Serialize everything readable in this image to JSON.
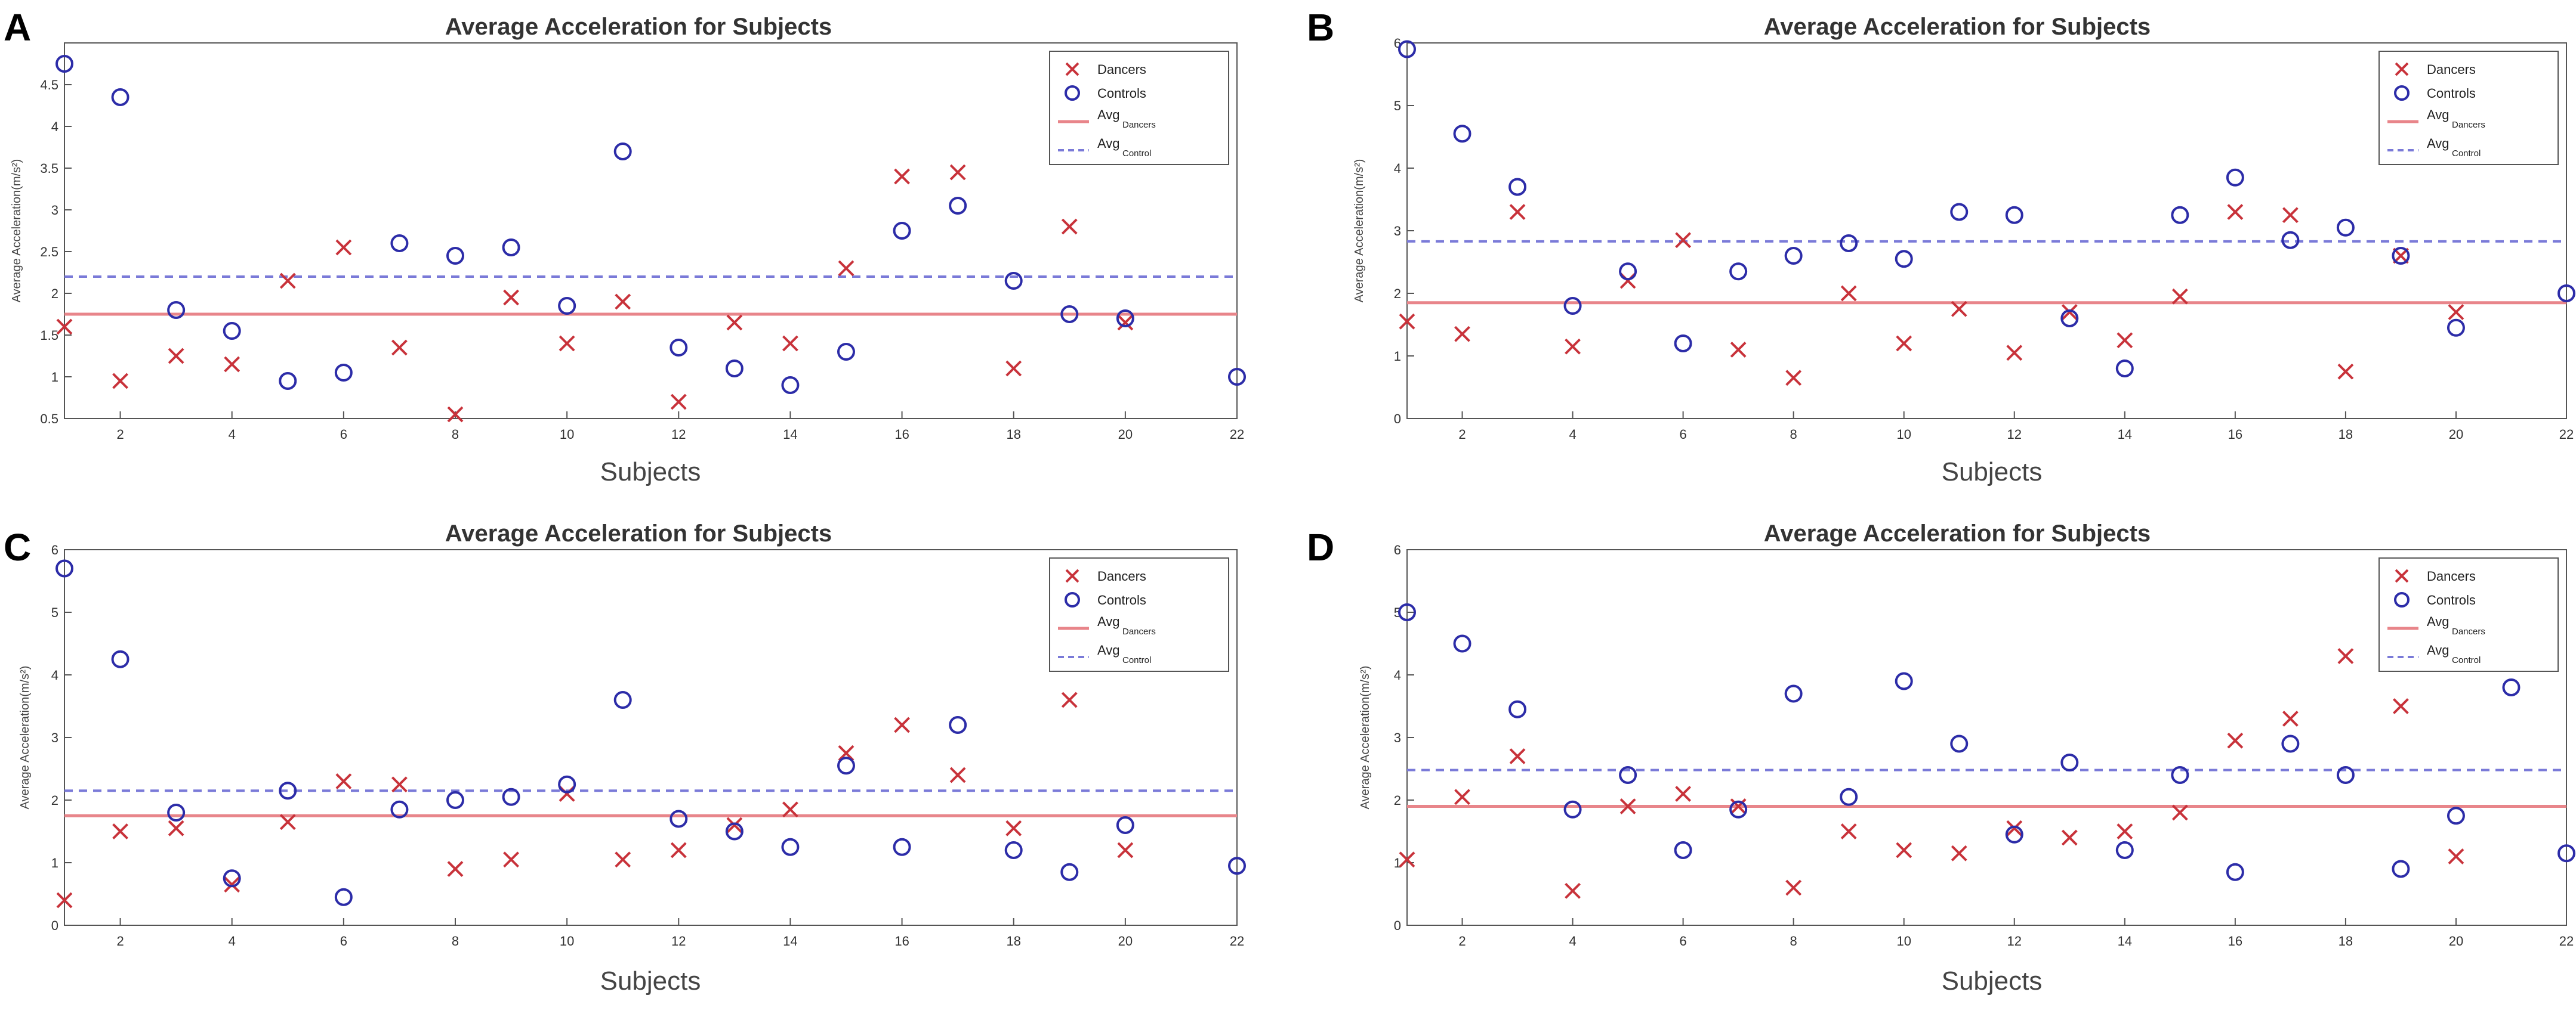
{
  "colors": {
    "dancers": "#c8323a",
    "controls": "#2c2ca8",
    "avg_dancers": "#e8858a",
    "avg_controls": "#7a7ad8",
    "axis": "#555555"
  },
  "chart_data": [
    {
      "type": "scatter",
      "panel_label": "A",
      "title": "Average Acceleration for Subjects",
      "xlabel": "Subjects",
      "ylabel": "Average Acceleration(m/s²)",
      "xlim": [
        1,
        22
      ],
      "ylim": [
        0.5,
        5
      ],
      "xticks": [
        "2",
        "4",
        "6",
        "8",
        "10",
        "12",
        "14",
        "16",
        "18",
        "20",
        "22"
      ],
      "yticks": [
        "0.5",
        "1",
        "1.5",
        "2",
        "2.5",
        "3",
        "3.5",
        "4",
        "4.5"
      ],
      "legend": {
        "dancers": "Dancers",
        "controls": "Controls",
        "avg_dancers": "Avg",
        "avg_dancers_sub": "Dancers",
        "avg_controls": "Avg",
        "avg_controls_sub": "Control",
        "position": "top-right"
      },
      "series": [
        {
          "name": "Dancers",
          "marker": "x",
          "x": [
            1,
            2,
            3,
            4,
            5,
            6,
            7,
            8,
            9,
            10,
            11,
            12,
            13,
            14,
            15,
            16,
            17,
            18,
            19,
            20
          ],
          "y": [
            1.6,
            0.95,
            1.25,
            1.15,
            2.15,
            2.55,
            1.35,
            0.55,
            1.95,
            1.4,
            1.9,
            0.7,
            1.65,
            1.4,
            2.3,
            3.4,
            3.45,
            1.1,
            2.8,
            1.65
          ]
        },
        {
          "name": "Controls",
          "marker": "o",
          "x": [
            1,
            2,
            3,
            4,
            5,
            6,
            7,
            8,
            9,
            10,
            11,
            12,
            13,
            14,
            15,
            16,
            17,
            18,
            19,
            20,
            22
          ],
          "y": [
            4.75,
            4.35,
            1.8,
            1.55,
            0.95,
            1.05,
            2.6,
            2.45,
            2.55,
            1.85,
            3.7,
            1.35,
            1.1,
            0.9,
            1.3,
            2.75,
            3.05,
            2.15,
            1.75,
            1.7,
            1.0
          ]
        }
      ],
      "avg_dancers": 1.75,
      "avg_controls": 2.2
    },
    {
      "type": "scatter",
      "panel_label": "B",
      "title": "Average Acceleration for Subjects",
      "xlabel": "Subjects",
      "ylabel": "Average Acceleration(m/s²)",
      "xlim": [
        1,
        22
      ],
      "ylim": [
        0,
        6
      ],
      "xticks": [
        "2",
        "4",
        "6",
        "8",
        "10",
        "12",
        "14",
        "16",
        "18",
        "20",
        "22"
      ],
      "yticks": [
        "0",
        "1",
        "2",
        "3",
        "4",
        "5",
        "6"
      ],
      "legend": {
        "dancers": "Dancers",
        "controls": "Controls",
        "avg_dancers": "Avg",
        "avg_dancers_sub": "Dancers",
        "avg_controls": "Avg",
        "avg_controls_sub": "Control",
        "position": "top-right"
      },
      "series": [
        {
          "name": "Dancers",
          "marker": "x",
          "x": [
            1,
            2,
            3,
            4,
            5,
            6,
            7,
            8,
            9,
            10,
            11,
            12,
            13,
            14,
            15,
            16,
            17,
            18,
            19,
            20
          ],
          "y": [
            1.55,
            1.35,
            3.3,
            1.15,
            2.2,
            2.85,
            1.1,
            0.65,
            2.0,
            1.2,
            1.75,
            1.05,
            1.7,
            1.25,
            1.95,
            3.3,
            3.25,
            0.75,
            2.6,
            1.7
          ]
        },
        {
          "name": "Controls",
          "marker": "o",
          "x": [
            1,
            2,
            3,
            4,
            5,
            6,
            7,
            8,
            9,
            10,
            11,
            12,
            13,
            14,
            15,
            16,
            17,
            18,
            19,
            20,
            22
          ],
          "y": [
            5.9,
            4.55,
            3.7,
            1.8,
            2.35,
            1.2,
            2.35,
            2.6,
            2.8,
            2.55,
            3.3,
            3.25,
            1.6,
            0.8,
            3.25,
            3.85,
            2.85,
            3.05,
            2.6,
            1.45,
            2.0
          ]
        }
      ],
      "avg_dancers": 1.85,
      "avg_controls": 2.83
    },
    {
      "type": "scatter",
      "panel_label": "C",
      "title": "Average Acceleration for Subjects",
      "xlabel": "Subjects",
      "ylabel": "Average Acceleration(m/s²)",
      "xlim": [
        1,
        22
      ],
      "ylim": [
        0,
        6
      ],
      "xticks": [
        "2",
        "4",
        "6",
        "8",
        "10",
        "12",
        "14",
        "16",
        "18",
        "20",
        "22"
      ],
      "yticks": [
        "0",
        "1",
        "2",
        "3",
        "4",
        "5",
        "6"
      ],
      "legend": {
        "dancers": "Dancers",
        "controls": "Controls",
        "avg_dancers": "Avg",
        "avg_dancers_sub": "Dancers",
        "avg_controls": "Avg",
        "avg_controls_sub": "Control",
        "position": "top-right"
      },
      "series": [
        {
          "name": "Dancers",
          "marker": "x",
          "x": [
            1,
            2,
            3,
            4,
            5,
            6,
            7,
            8,
            9,
            10,
            11,
            12,
            13,
            14,
            15,
            16,
            17,
            18,
            19,
            20
          ],
          "y": [
            0.4,
            1.5,
            1.55,
            0.65,
            1.65,
            2.3,
            2.25,
            0.9,
            1.05,
            2.1,
            1.05,
            1.2,
            1.6,
            1.85,
            2.75,
            3.2,
            2.4,
            1.55,
            3.6,
            1.2
          ]
        },
        {
          "name": "Controls",
          "marker": "o",
          "x": [
            1,
            2,
            3,
            4,
            5,
            6,
            7,
            8,
            9,
            10,
            11,
            12,
            13,
            14,
            15,
            16,
            17,
            18,
            19,
            20,
            22
          ],
          "y": [
            5.7,
            4.25,
            1.8,
            0.75,
            2.15,
            0.45,
            1.85,
            2.0,
            2.05,
            2.25,
            3.6,
            1.7,
            1.5,
            1.25,
            2.55,
            1.25,
            3.2,
            1.2,
            0.85,
            1.6,
            0.95
          ]
        }
      ],
      "avg_dancers": 1.75,
      "avg_controls": 2.15
    },
    {
      "type": "scatter",
      "panel_label": "D",
      "title": "Average Acceleration for Subjects",
      "xlabel": "Subjects",
      "ylabel": "Average Acceleration(m/s²)",
      "xlim": [
        1,
        22
      ],
      "ylim": [
        0,
        6
      ],
      "xticks": [
        "2",
        "4",
        "6",
        "8",
        "10",
        "12",
        "14",
        "16",
        "18",
        "20",
        "22"
      ],
      "yticks": [
        "0",
        "1",
        "2",
        "3",
        "4",
        "5",
        "6"
      ],
      "legend": {
        "dancers": "Dancers",
        "controls": "Controls",
        "avg_dancers": "Avg",
        "avg_dancers_sub": "Dancers",
        "avg_controls": "Avg",
        "avg_controls_sub": "Control",
        "position": "top-right"
      },
      "series": [
        {
          "name": "Dancers",
          "marker": "x",
          "x": [
            1,
            2,
            3,
            4,
            5,
            6,
            7,
            8,
            9,
            10,
            11,
            12,
            13,
            14,
            15,
            16,
            17,
            18,
            19,
            20
          ],
          "y": [
            1.05,
            2.05,
            2.7,
            0.55,
            1.9,
            2.1,
            1.9,
            0.6,
            1.5,
            1.2,
            1.15,
            1.55,
            1.4,
            1.5,
            1.8,
            2.95,
            3.3,
            4.3,
            3.5,
            1.1
          ]
        },
        {
          "name": "Controls",
          "marker": "o",
          "x": [
            1,
            2,
            3,
            4,
            5,
            6,
            7,
            8,
            9,
            10,
            11,
            12,
            13,
            14,
            15,
            16,
            17,
            18,
            19,
            20,
            21,
            22
          ],
          "y": [
            5.0,
            4.5,
            3.45,
            1.85,
            2.4,
            1.2,
            1.85,
            3.7,
            2.05,
            3.9,
            2.9,
            1.45,
            2.6,
            1.2,
            2.4,
            0.85,
            2.9,
            2.4,
            0.9,
            1.75,
            3.8,
            1.15
          ]
        }
      ],
      "avg_dancers": 1.9,
      "avg_controls": 2.48
    }
  ]
}
